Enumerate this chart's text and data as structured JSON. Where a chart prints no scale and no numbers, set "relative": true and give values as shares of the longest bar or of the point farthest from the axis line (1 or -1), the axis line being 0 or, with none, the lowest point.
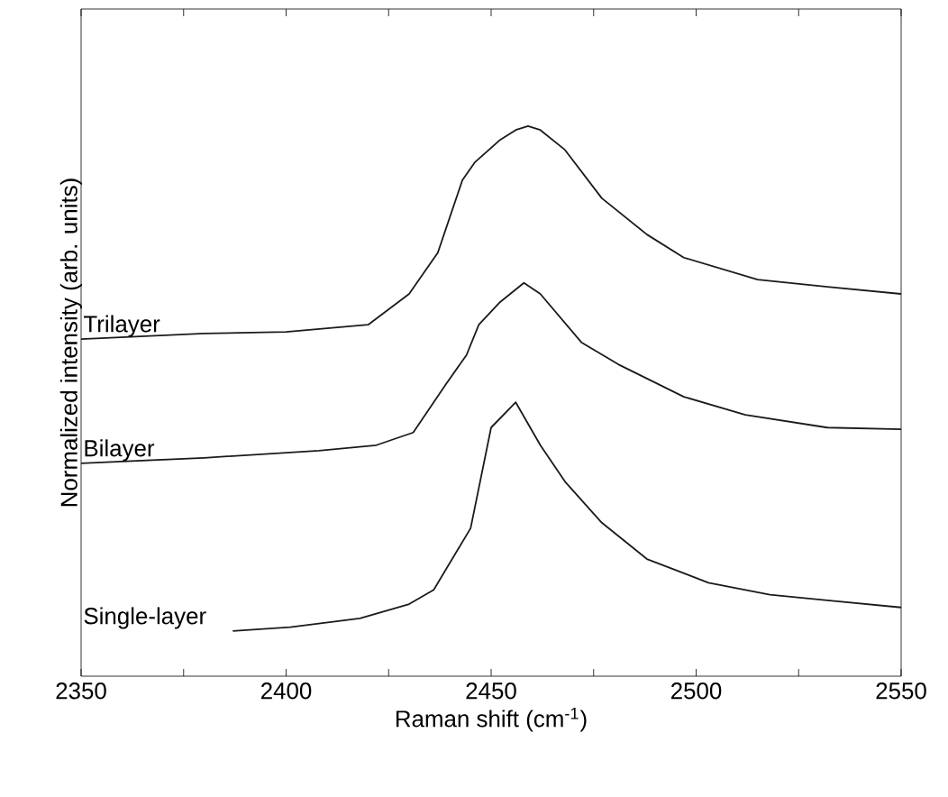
{
  "chart_data": {
    "type": "line",
    "xlabel": "Raman shift (cm$^{-1}$)",
    "ylabel": "Normalized intensity (arb. units)",
    "relative": true,
    "legend": false,
    "xlim": [
      2350,
      2550
    ],
    "xticks": [
      2350,
      {
        "value": 2375,
        "label": null
      },
      2400,
      {
        "value": 2425,
        "label": null
      },
      2450,
      {
        "value": 2475,
        "label": null
      },
      2500,
      {
        "value": 2525,
        "label": null
      },
      2550
    ],
    "series": [
      {
        "name": "Trilayer",
        "color": "#1a1a1a",
        "x": [
          2350,
          2380,
          2400,
          2420,
          2430,
          2437,
          2443,
          2446,
          2452,
          2456,
          2459,
          2462,
          2468,
          2477,
          2488,
          2497,
          2515,
          2532,
          2550
        ],
        "values": [
          0.613,
          0.623,
          0.626,
          0.639,
          0.695,
          0.77,
          0.902,
          0.934,
          0.974,
          0.993,
          1.0,
          0.993,
          0.957,
          0.869,
          0.803,
          0.761,
          0.721,
          0.708,
          0.695
        ]
      },
      {
        "name": "Bilayer",
        "color": "#1a1a1a",
        "x": [
          2350,
          2380,
          2408,
          2422,
          2431,
          2439,
          2444,
          2447,
          2452,
          2458,
          2462,
          2472,
          2481,
          2497,
          2512,
          2532,
          2550
        ],
        "values": [
          0.387,
          0.397,
          0.41,
          0.42,
          0.443,
          0.531,
          0.584,
          0.639,
          0.679,
          0.715,
          0.695,
          0.607,
          0.567,
          0.508,
          0.475,
          0.452,
          0.449
        ]
      },
      {
        "name": "Single-layer",
        "color": "#1a1a1a",
        "x": [
          2387,
          2401,
          2418,
          2430,
          2436,
          2445,
          2450,
          2456,
          2462,
          2468,
          2477,
          2488,
          2503,
          2518,
          2532,
          2550
        ],
        "values": [
          0.082,
          0.089,
          0.105,
          0.131,
          0.157,
          0.269,
          0.452,
          0.498,
          0.42,
          0.354,
          0.279,
          0.213,
          0.17,
          0.148,
          0.138,
          0.125
        ]
      }
    ]
  }
}
